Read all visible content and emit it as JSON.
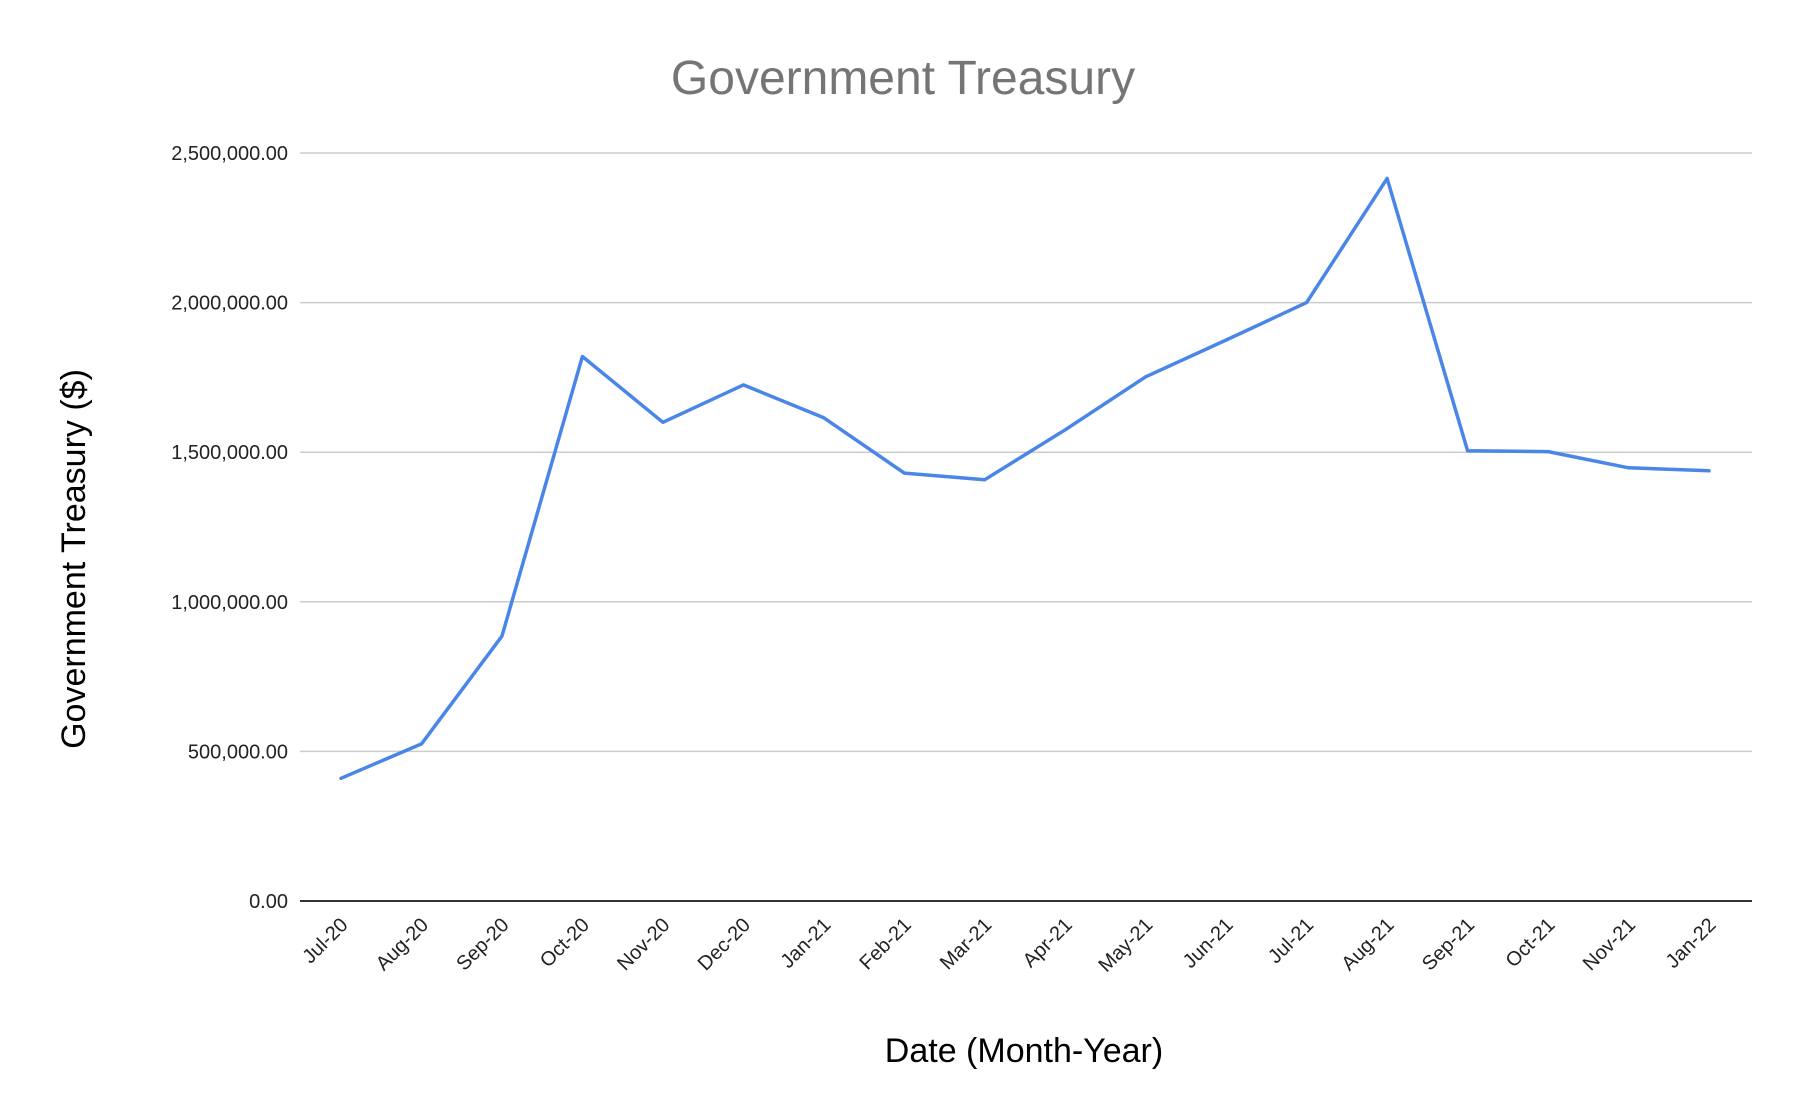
{
  "colors": {
    "line": "#4a86e8",
    "grid": "#cccccc",
    "baseline": "#333333",
    "title": "#757575"
  },
  "chart_data": {
    "type": "line",
    "title": "Government Treasury",
    "xlabel": "Date (Month-Year)",
    "ylabel": "Government Treasury ($)",
    "ylim": [
      0,
      2500000
    ],
    "grid": true,
    "legend": "none",
    "yticks": [
      0,
      500000,
      1000000,
      1500000,
      2000000,
      2500000
    ],
    "ytick_labels": [
      "0.00",
      "500,000.00",
      "1,000,000.00",
      "1,500,000.00",
      "2,000,000.00",
      "2,500,000.00"
    ],
    "categories": [
      "Jul-20",
      "Aug-20",
      "Sep-20",
      "Oct-20",
      "Nov-20",
      "Dec-20",
      "Jan-21",
      "Feb-21",
      "Mar-21",
      "Apr-21",
      "May-21",
      "Jun-21",
      "Jul-21",
      "Aug-21",
      "Sep-21",
      "Oct-21",
      "Nov-21",
      "Jan-22"
    ],
    "series": [
      {
        "values": [
          410000,
          525000,
          885000,
          1820000,
          1600000,
          1725000,
          1615000,
          1430000,
          1408000,
          1575000,
          1752000,
          1875000,
          2000000,
          2415000,
          1505000,
          1502000,
          1448000,
          1438000
        ]
      }
    ]
  }
}
